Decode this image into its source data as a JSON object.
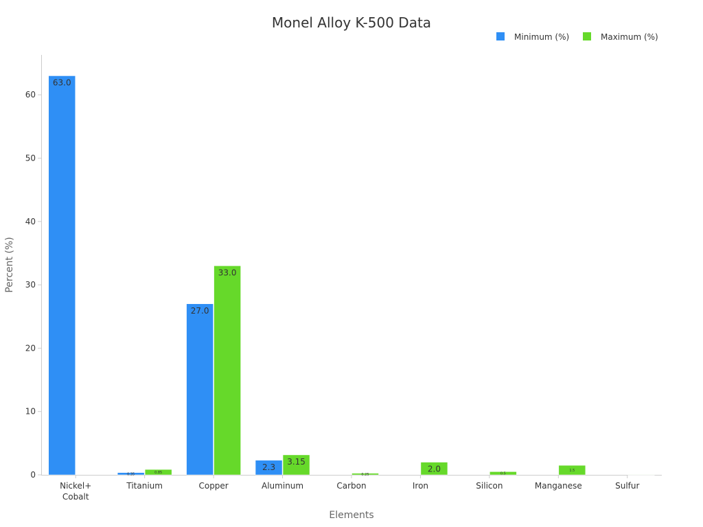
{
  "chart_data": {
    "type": "bar",
    "title": "Monel Alloy K-500 Data",
    "xlabel": "Elements",
    "ylabel": "Percent (%)",
    "categories": [
      [
        "Nickel+",
        "Cobalt"
      ],
      [
        "Titanium"
      ],
      [
        "Copper"
      ],
      [
        "Aluminum"
      ],
      [
        "Carbon"
      ],
      [
        "Iron"
      ],
      [
        "Silicon"
      ],
      [
        "Manganese"
      ],
      [
        "Sulfur"
      ]
    ],
    "series": [
      {
        "name": "Minimum (%)",
        "color": "#2f8ff5",
        "values": [
          63.0,
          0.35,
          27.0,
          2.3,
          0,
          0,
          0,
          0,
          0
        ],
        "labels": [
          "63.0",
          "0.35",
          "27.0",
          "2.3",
          "",
          "",
          "",
          "",
          ""
        ]
      },
      {
        "name": "Maximum (%)",
        "color": "#66d92a",
        "values": [
          0,
          0.85,
          33.0,
          3.15,
          0.25,
          2.0,
          0.5,
          1.5,
          0.01
        ],
        "labels": [
          "",
          "0.85",
          "33.0",
          "3.15",
          "0.25",
          "2.0",
          "0.5",
          "1.5",
          ""
        ]
      }
    ],
    "yticks": [
      0,
      10,
      20,
      30,
      40,
      50,
      60
    ],
    "ylim": [
      0,
      66.3
    ],
    "grid": false,
    "legend_position": "top-right"
  }
}
